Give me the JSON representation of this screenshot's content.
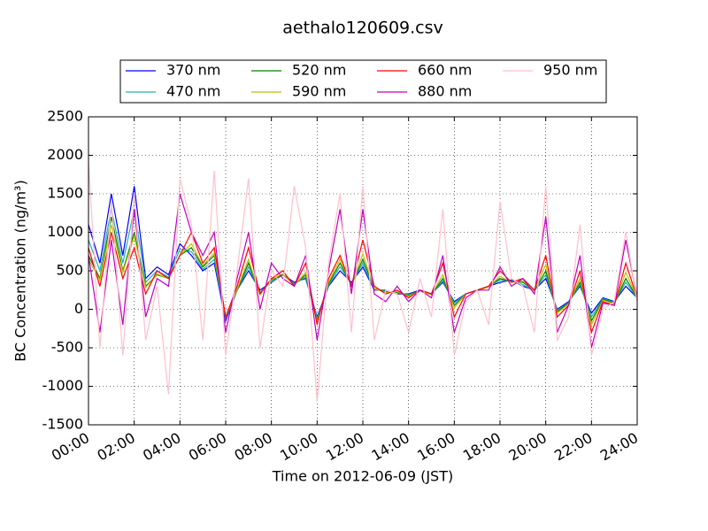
{
  "chart_data": {
    "type": "line",
    "title": "aethalo120609.csv",
    "x_label": "Time on 2012-06-09 (JST)",
    "y_label": "BC Concentration (ng/m³)",
    "x": [
      0,
      0.5,
      1,
      1.5,
      2,
      2.5,
      3,
      3.5,
      4,
      4.5,
      5,
      5.5,
      6,
      6.5,
      7,
      7.5,
      8,
      8.5,
      9,
      9.5,
      10,
      10.5,
      11,
      11.5,
      12,
      12.5,
      13,
      13.5,
      14,
      14.5,
      15,
      15.5,
      16,
      16.5,
      17,
      17.5,
      18,
      18.5,
      19,
      19.5,
      20,
      20.5,
      21,
      21.5,
      22,
      22.5,
      23,
      23.5,
      24
    ],
    "xlim": [
      0,
      24
    ],
    "xticks": [
      {
        "value": 0,
        "label": "00:00"
      },
      {
        "value": 2,
        "label": "02:00"
      },
      {
        "value": 4,
        "label": "04:00"
      },
      {
        "value": 6,
        "label": "06:00"
      },
      {
        "value": 8,
        "label": "08:00"
      },
      {
        "value": 10,
        "label": "10:00"
      },
      {
        "value": 12,
        "label": "12:00"
      },
      {
        "value": 14,
        "label": "14:00"
      },
      {
        "value": 16,
        "label": "16:00"
      },
      {
        "value": 18,
        "label": "18:00"
      },
      {
        "value": 20,
        "label": "20:00"
      },
      {
        "value": 22,
        "label": "22:00"
      },
      {
        "value": 24,
        "label": "24:00"
      }
    ],
    "ylim": [
      -1500,
      2500
    ],
    "yticks": [
      -1500,
      -1000,
      -500,
      0,
      500,
      1000,
      1500,
      2000,
      2500
    ],
    "grid": true,
    "legend": "top",
    "series": [
      {
        "name": "370 nm",
        "color": "#0000ff",
        "values": [
          1100,
          600,
          1500,
          700,
          1600,
          400,
          550,
          450,
          850,
          700,
          500,
          600,
          -150,
          250,
          500,
          250,
          350,
          450,
          350,
          400,
          -100,
          300,
          500,
          350,
          550,
          250,
          250,
          200,
          200,
          250,
          200,
          350,
          100,
          200,
          250,
          300,
          350,
          380,
          300,
          250,
          400,
          0,
          100,
          300,
          -50,
          150,
          100,
          300,
          150
        ]
      },
      {
        "name": "470 nm",
        "color": "#20b2aa",
        "values": [
          900,
          500,
          1300,
          600,
          1300,
          350,
          500,
          420,
          780,
          750,
          520,
          650,
          -120,
          250,
          550,
          220,
          360,
          450,
          330,
          420,
          -120,
          310,
          550,
          330,
          600,
          260,
          240,
          210,
          190,
          240,
          190,
          370,
          80,
          200,
          240,
          300,
          380,
          370,
          320,
          240,
          450,
          -20,
          90,
          320,
          -100,
          140,
          90,
          350,
          150
        ]
      },
      {
        "name": "520 nm",
        "color": "#008000",
        "values": [
          700,
          400,
          1200,
          500,
          1000,
          300,
          450,
          400,
          700,
          800,
          550,
          700,
          -100,
          250,
          600,
          200,
          380,
          450,
          320,
          450,
          -150,
          330,
          600,
          320,
          650,
          270,
          230,
          220,
          180,
          240,
          190,
          400,
          50,
          200,
          240,
          300,
          400,
          360,
          350,
          240,
          500,
          -30,
          80,
          350,
          -150,
          130,
          80,
          400,
          150
        ]
      },
      {
        "name": "590 nm",
        "color": "#bfbf00",
        "values": [
          650,
          380,
          1100,
          480,
          950,
          280,
          460,
          400,
          700,
          850,
          570,
          730,
          -100,
          260,
          650,
          190,
          390,
          460,
          310,
          480,
          -170,
          350,
          650,
          310,
          720,
          270,
          220,
          230,
          170,
          240,
          190,
          450,
          20,
          200,
          240,
          290,
          430,
          350,
          370,
          240,
          580,
          -50,
          70,
          400,
          -200,
          120,
          70,
          480,
          150
        ]
      },
      {
        "name": "660 nm",
        "color": "#ff0000",
        "values": [
          800,
          300,
          1000,
          400,
          800,
          200,
          500,
          400,
          700,
          1000,
          600,
          800,
          -100,
          300,
          800,
          200,
          400,
          500,
          300,
          600,
          -200,
          400,
          700,
          300,
          900,
          300,
          200,
          250,
          150,
          250,
          200,
          600,
          -100,
          200,
          250,
          300,
          500,
          350,
          400,
          250,
          700,
          -100,
          50,
          500,
          -300,
          100,
          50,
          600,
          150
        ]
      },
      {
        "name": "880 nm",
        "color": "#bf00bf",
        "values": [
          700,
          -300,
          900,
          -200,
          1300,
          -100,
          400,
          300,
          1500,
          1000,
          700,
          1000,
          -300,
          400,
          1000,
          0,
          600,
          400,
          300,
          700,
          -400,
          500,
          1300,
          200,
          1300,
          200,
          100,
          300,
          100,
          250,
          150,
          700,
          -300,
          150,
          250,
          250,
          550,
          300,
          400,
          200,
          1200,
          -300,
          50,
          700,
          -500,
          80,
          50,
          900,
          150
        ]
      },
      {
        "name": "950 nm",
        "color": "#ffc0cb",
        "values": [
          1900,
          -500,
          1400,
          -600,
          1500,
          -400,
          300,
          -1100,
          1700,
          1100,
          -400,
          1800,
          -600,
          500,
          1700,
          -500,
          500,
          300,
          1600,
          800,
          -1200,
          600,
          1500,
          -300,
          1600,
          -400,
          250,
          200,
          -300,
          400,
          -100,
          1300,
          -600,
          100,
          250,
          -200,
          1400,
          400,
          300,
          -300,
          1600,
          -400,
          -100,
          1100,
          -600,
          0,
          100,
          1000,
          100
        ]
      }
    ]
  }
}
